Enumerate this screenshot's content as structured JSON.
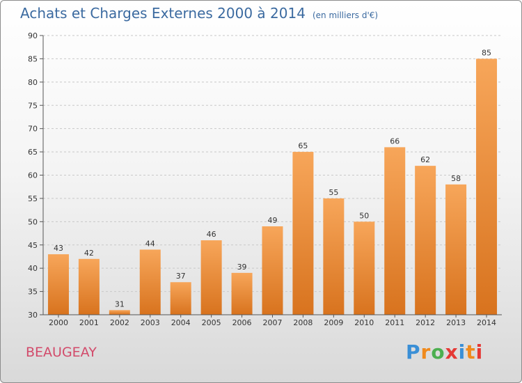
{
  "title": "Achats et Charges Externes 2000 à 2014",
  "subtitle": "(en milliers d'€)",
  "commune": "BEAUGEAY",
  "logo": {
    "text": "Proxiti",
    "letters": [
      "P",
      "r",
      "o",
      "x",
      "i",
      "t",
      "i"
    ],
    "colors": [
      "#3a8fd6",
      "#f08a1c",
      "#4caf50",
      "#e53935",
      "#3a8fd6",
      "#f08a1c",
      "#e53935"
    ]
  },
  "colors": {
    "bar_top": "#f7a65a",
    "bar_bottom": "#d8731e",
    "title": "#3b6aa0",
    "commune": "#d24a6a"
  },
  "chart_data": {
    "type": "bar",
    "title": "Achats et Charges Externes 2000 à 2014",
    "subtitle": "(en milliers d'€)",
    "categories": [
      "2000",
      "2001",
      "2002",
      "2003",
      "2004",
      "2005",
      "2006",
      "2007",
      "2008",
      "2009",
      "2010",
      "2011",
      "2012",
      "2013",
      "2014"
    ],
    "values": [
      43,
      42,
      31,
      44,
      37,
      46,
      39,
      49,
      65,
      55,
      50,
      66,
      62,
      58,
      85
    ],
    "ylim": [
      30,
      90
    ],
    "yticks": [
      30,
      35,
      40,
      45,
      50,
      55,
      60,
      65,
      70,
      75,
      80,
      85,
      90
    ],
    "grid": "horizontal dashed",
    "legend": "none"
  }
}
